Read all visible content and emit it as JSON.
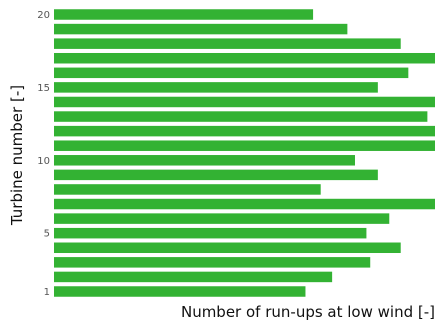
{
  "chart_data": {
    "type": "bar",
    "orientation": "horizontal",
    "xlabel": "Number of run-ups at low wind [-]",
    "ylabel": "Turbine number [-]",
    "categories": [
      1,
      2,
      3,
      4,
      5,
      6,
      7,
      8,
      9,
      10,
      11,
      12,
      13,
      14,
      15,
      16,
      17,
      18,
      19,
      20
    ],
    "y_tick_labels": [
      "1",
      "5",
      "10",
      "15",
      "20"
    ],
    "y_tick_values": [
      1,
      5,
      10,
      15,
      20
    ],
    "values": [
      0.66,
      0.73,
      0.83,
      0.91,
      0.82,
      0.88,
      1.0,
      0.7,
      0.85,
      0.79,
      1.0,
      1.0,
      0.98,
      1.0,
      0.85,
      0.93,
      1.0,
      0.91,
      0.77,
      0.68
    ],
    "xlim": [
      0,
      1.0
    ],
    "x_tick_labels": [],
    "grid": false,
    "bar_color": "#33b233"
  }
}
